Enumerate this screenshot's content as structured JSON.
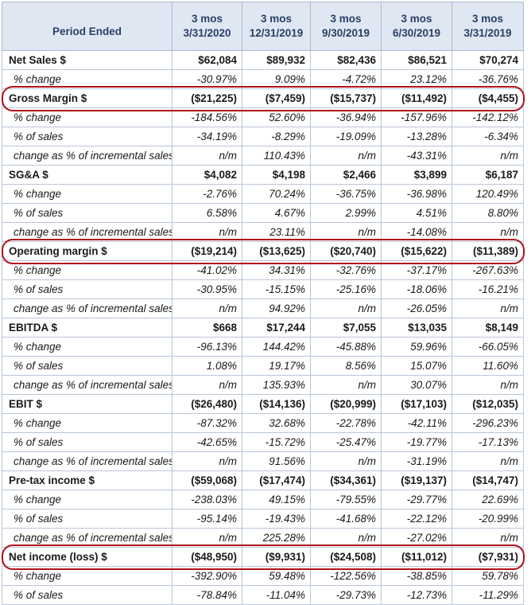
{
  "header": {
    "label": "Period Ended",
    "columns": [
      {
        "line1": "3 mos",
        "line2": "3/31/2020"
      },
      {
        "line1": "3 mos",
        "line2": "12/31/2019"
      },
      {
        "line1": "3 mos",
        "line2": "9/30/2019"
      },
      {
        "line1": "3 mos",
        "line2": "6/30/2019"
      },
      {
        "line1": "3 mos",
        "line2": "3/31/2019"
      }
    ]
  },
  "rows": [
    {
      "label": "Net Sales $",
      "type": "main",
      "values": [
        "$62,084",
        "$89,932",
        "$82,436",
        "$86,521",
        "$70,274"
      ]
    },
    {
      "label": "% change",
      "type": "sub",
      "values": [
        "-30.97%",
        "9.09%",
        "-4.72%",
        "23.12%",
        "-36.76%"
      ]
    },
    {
      "label": "Gross Margin $",
      "type": "main",
      "highlight": true,
      "values": [
        "($21,225)",
        "($7,459)",
        "($15,737)",
        "($11,492)",
        "($4,455)"
      ]
    },
    {
      "label": "% change",
      "type": "sub",
      "values": [
        "-184.56%",
        "52.60%",
        "-36.94%",
        "-157.96%",
        "-142.12%"
      ]
    },
    {
      "label": "% of sales",
      "type": "sub",
      "values": [
        "-34.19%",
        "-8.29%",
        "-19.09%",
        "-13.28%",
        "-6.34%"
      ]
    },
    {
      "label": "change as % of incremental sales",
      "type": "sub",
      "values": [
        "n/m",
        "110.43%",
        "n/m",
        "-43.31%",
        "n/m"
      ]
    },
    {
      "label": "SG&A $",
      "type": "main",
      "values": [
        "$4,082",
        "$4,198",
        "$2,466",
        "$3,899",
        "$6,187"
      ]
    },
    {
      "label": "% change",
      "type": "sub",
      "values": [
        "-2.76%",
        "70.24%",
        "-36.75%",
        "-36.98%",
        "120.49%"
      ]
    },
    {
      "label": "% of sales",
      "type": "sub",
      "values": [
        "6.58%",
        "4.67%",
        "2.99%",
        "4.51%",
        "8.80%"
      ]
    },
    {
      "label": "change as % of incremental sales",
      "type": "sub",
      "values": [
        "n/m",
        "23.11%",
        "n/m",
        "-14.08%",
        "n/m"
      ]
    },
    {
      "label": "Operating margin $",
      "type": "main",
      "highlight": true,
      "values": [
        "($19,214)",
        "($13,625)",
        "($20,740)",
        "($15,622)",
        "($11,389)"
      ]
    },
    {
      "label": "% change",
      "type": "sub",
      "values": [
        "-41.02%",
        "34.31%",
        "-32.76%",
        "-37.17%",
        "-267.63%"
      ]
    },
    {
      "label": "% of sales",
      "type": "sub",
      "values": [
        "-30.95%",
        "-15.15%",
        "-25.16%",
        "-18.06%",
        "-16.21%"
      ]
    },
    {
      "label": "change as % of incremental sales",
      "type": "sub",
      "values": [
        "n/m",
        "94.92%",
        "n/m",
        "-26.05%",
        "n/m"
      ]
    },
    {
      "label": "EBITDA $",
      "type": "main",
      "values": [
        "$668",
        "$17,244",
        "$7,055",
        "$13,035",
        "$8,149"
      ]
    },
    {
      "label": "% change",
      "type": "sub",
      "values": [
        "-96.13%",
        "144.42%",
        "-45.88%",
        "59.96%",
        "-66.05%"
      ]
    },
    {
      "label": "% of sales",
      "type": "sub",
      "values": [
        "1.08%",
        "19.17%",
        "8.56%",
        "15.07%",
        "11.60%"
      ]
    },
    {
      "label": "change as % of incremental sales",
      "type": "sub",
      "values": [
        "n/m",
        "135.93%",
        "n/m",
        "30.07%",
        "n/m"
      ]
    },
    {
      "label": "EBIT $",
      "type": "main",
      "values": [
        "($26,480)",
        "($14,136)",
        "($20,999)",
        "($17,103)",
        "($12,035)"
      ]
    },
    {
      "label": "% change",
      "type": "sub",
      "values": [
        "-87.32%",
        "32.68%",
        "-22.78%",
        "-42.11%",
        "-296.23%"
      ]
    },
    {
      "label": "% of sales",
      "type": "sub",
      "values": [
        "-42.65%",
        "-15.72%",
        "-25.47%",
        "-19.77%",
        "-17.13%"
      ]
    },
    {
      "label": "change as % of incremental sales",
      "type": "sub",
      "values": [
        "n/m",
        "91.56%",
        "n/m",
        "-31.19%",
        "n/m"
      ]
    },
    {
      "label": "Pre-tax income $",
      "type": "main",
      "values": [
        "($59,068)",
        "($17,474)",
        "($34,361)",
        "($19,137)",
        "($14,747)"
      ]
    },
    {
      "label": "% change",
      "type": "sub",
      "values": [
        "-238.03%",
        "49.15%",
        "-79.55%",
        "-29.77%",
        "22.69%"
      ]
    },
    {
      "label": "% of sales",
      "type": "sub",
      "values": [
        "-95.14%",
        "-19.43%",
        "-41.68%",
        "-22.12%",
        "-20.99%"
      ]
    },
    {
      "label": "change as % of incremental sales",
      "type": "sub",
      "values": [
        "n/m",
        "225.28%",
        "n/m",
        "-27.02%",
        "n/m"
      ]
    },
    {
      "label": "Net income (loss) $",
      "type": "main",
      "highlight": true,
      "values": [
        "($48,950)",
        "($9,931)",
        "($24,508)",
        "($11,012)",
        "($7,931)"
      ]
    },
    {
      "label": "% change",
      "type": "sub",
      "values": [
        "-392.90%",
        "59.48%",
        "-122.56%",
        "-38.85%",
        "59.78%"
      ]
    },
    {
      "label": "% of sales",
      "type": "sub",
      "values": [
        "-78.84%",
        "-11.04%",
        "-29.73%",
        "-12.73%",
        "-11.29%"
      ]
    }
  ],
  "colors": {
    "header_bg": "#dfe7f3",
    "header_text": "#2a3f66",
    "grid": "#b9c6d8",
    "highlight": "#b0121b"
  }
}
